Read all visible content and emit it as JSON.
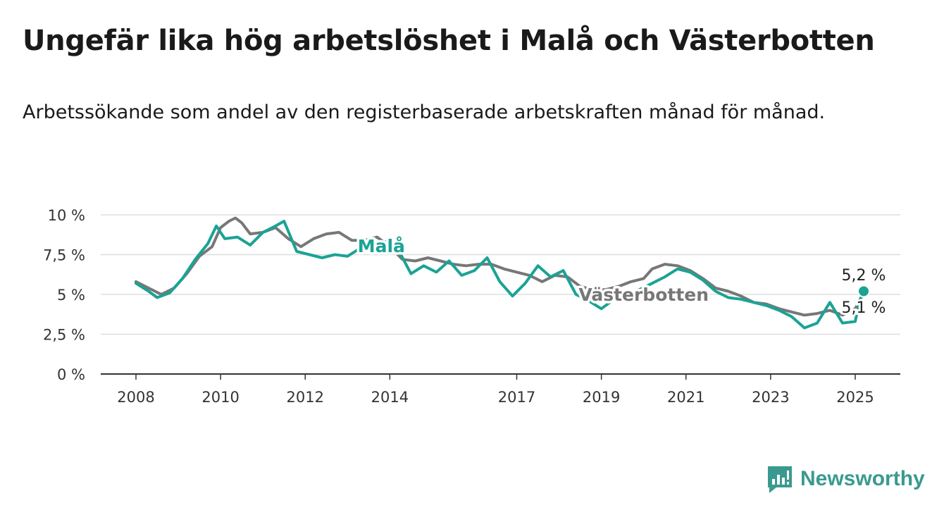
{
  "title": "Ungefär lika hög arbetslöshet i Malå och Västerbotten",
  "subtitle": "Arbetssökande som andel av den registerbaserade arbetskraften månad för månad.",
  "brand": {
    "name": "Newsworthy",
    "color": "#3a9a8f"
  },
  "chart_data": {
    "type": "line",
    "y_ticks": [
      "10 %",
      "7,5 %",
      "5 %",
      "2,5 %",
      "0 %"
    ],
    "y_tick_values": [
      10,
      7.5,
      5,
      2.5,
      0
    ],
    "x_ticks": [
      "2008",
      "2010",
      "2012",
      "2014",
      "2017",
      "2019",
      "2021",
      "2023",
      "2025"
    ],
    "x_tick_values": [
      2008,
      2010,
      2012,
      2014,
      2017,
      2019,
      2021,
      2023,
      2025
    ],
    "xlim": [
      2008,
      2025.2
    ],
    "ylim": [
      0,
      10
    ],
    "grid": true,
    "series": [
      {
        "name": "Västerbotten",
        "color": "#777777",
        "end_label": "5,1 %",
        "points": [
          [
            2008.0,
            5.8
          ],
          [
            2008.3,
            5.4
          ],
          [
            2008.6,
            5.0
          ],
          [
            2008.9,
            5.4
          ],
          [
            2009.2,
            6.3
          ],
          [
            2009.5,
            7.4
          ],
          [
            2009.8,
            8.0
          ],
          [
            2010.0,
            9.2
          ],
          [
            2010.2,
            9.6
          ],
          [
            2010.35,
            9.8
          ],
          [
            2010.5,
            9.5
          ],
          [
            2010.7,
            8.8
          ],
          [
            2011.0,
            8.9
          ],
          [
            2011.3,
            9.2
          ],
          [
            2011.6,
            8.5
          ],
          [
            2011.9,
            8.0
          ],
          [
            2012.2,
            8.5
          ],
          [
            2012.5,
            8.8
          ],
          [
            2012.8,
            8.9
          ],
          [
            2013.1,
            8.4
          ],
          [
            2013.4,
            8.4
          ],
          [
            2013.7,
            8.6
          ],
          [
            2014.0,
            8.0
          ],
          [
            2014.3,
            7.2
          ],
          [
            2014.6,
            7.1
          ],
          [
            2014.9,
            7.3
          ],
          [
            2015.2,
            7.1
          ],
          [
            2015.5,
            6.9
          ],
          [
            2015.8,
            6.8
          ],
          [
            2016.1,
            6.9
          ],
          [
            2016.4,
            6.9
          ],
          [
            2016.7,
            6.6
          ],
          [
            2017.0,
            6.4
          ],
          [
            2017.3,
            6.2
          ],
          [
            2017.6,
            5.8
          ],
          [
            2017.9,
            6.2
          ],
          [
            2018.2,
            6.1
          ],
          [
            2018.5,
            5.5
          ],
          [
            2018.8,
            5.3
          ],
          [
            2019.1,
            5.3
          ],
          [
            2019.4,
            5.5
          ],
          [
            2019.7,
            5.8
          ],
          [
            2020.0,
            6.0
          ],
          [
            2020.2,
            6.6
          ],
          [
            2020.5,
            6.9
          ],
          [
            2020.8,
            6.8
          ],
          [
            2021.1,
            6.5
          ],
          [
            2021.4,
            6.0
          ],
          [
            2021.7,
            5.4
          ],
          [
            2022.0,
            5.2
          ],
          [
            2022.3,
            4.9
          ],
          [
            2022.6,
            4.5
          ],
          [
            2022.9,
            4.4
          ],
          [
            2023.2,
            4.1
          ],
          [
            2023.5,
            3.9
          ],
          [
            2023.8,
            3.7
          ],
          [
            2024.1,
            3.8
          ],
          [
            2024.4,
            4.0
          ],
          [
            2024.7,
            3.7
          ],
          [
            2025.0,
            4.1
          ],
          [
            2025.2,
            5.1
          ]
        ]
      },
      {
        "name": "Malå",
        "color": "#1aa395",
        "end_label": "5,2 %",
        "points": [
          [
            2008.0,
            5.7
          ],
          [
            2008.3,
            5.2
          ],
          [
            2008.5,
            4.8
          ],
          [
            2008.8,
            5.1
          ],
          [
            2009.1,
            6.0
          ],
          [
            2009.4,
            7.2
          ],
          [
            2009.7,
            8.2
          ],
          [
            2009.9,
            9.3
          ],
          [
            2010.1,
            8.5
          ],
          [
            2010.4,
            8.6
          ],
          [
            2010.7,
            8.1
          ],
          [
            2011.0,
            8.9
          ],
          [
            2011.3,
            9.3
          ],
          [
            2011.5,
            9.6
          ],
          [
            2011.8,
            7.7
          ],
          [
            2012.1,
            7.5
          ],
          [
            2012.4,
            7.3
          ],
          [
            2012.7,
            7.5
          ],
          [
            2013.0,
            7.4
          ],
          [
            2013.3,
            7.9
          ],
          [
            2013.6,
            8.1
          ],
          [
            2013.9,
            8.3
          ],
          [
            2014.2,
            7.8
          ],
          [
            2014.5,
            6.3
          ],
          [
            2014.8,
            6.8
          ],
          [
            2015.1,
            6.4
          ],
          [
            2015.4,
            7.1
          ],
          [
            2015.7,
            6.2
          ],
          [
            2016.0,
            6.5
          ],
          [
            2016.3,
            7.3
          ],
          [
            2016.6,
            5.8
          ],
          [
            2016.9,
            4.9
          ],
          [
            2017.2,
            5.7
          ],
          [
            2017.5,
            6.8
          ],
          [
            2017.8,
            6.1
          ],
          [
            2018.1,
            6.5
          ],
          [
            2018.4,
            5.0
          ],
          [
            2018.7,
            4.6
          ],
          [
            2019.0,
            4.1
          ],
          [
            2019.3,
            4.7
          ],
          [
            2019.6,
            4.9
          ],
          [
            2019.9,
            5.3
          ],
          [
            2020.2,
            5.7
          ],
          [
            2020.5,
            6.1
          ],
          [
            2020.8,
            6.6
          ],
          [
            2021.1,
            6.4
          ],
          [
            2021.4,
            5.9
          ],
          [
            2021.7,
            5.2
          ],
          [
            2022.0,
            4.8
          ],
          [
            2022.3,
            4.7
          ],
          [
            2022.6,
            4.5
          ],
          [
            2022.9,
            4.3
          ],
          [
            2023.2,
            4.0
          ],
          [
            2023.5,
            3.6
          ],
          [
            2023.8,
            2.9
          ],
          [
            2024.1,
            3.2
          ],
          [
            2024.4,
            4.5
          ],
          [
            2024.7,
            3.2
          ],
          [
            2025.0,
            3.3
          ],
          [
            2025.1,
            4.6
          ],
          [
            2025.2,
            5.2
          ]
        ]
      }
    ],
    "annotations": [
      {
        "text": "Malå",
        "series": "Malå",
        "at": [
          2013.8,
          8.05
        ]
      },
      {
        "text": "Västerbotten",
        "series": "Västerbotten",
        "at": [
          2020.0,
          5.0
        ]
      }
    ]
  }
}
